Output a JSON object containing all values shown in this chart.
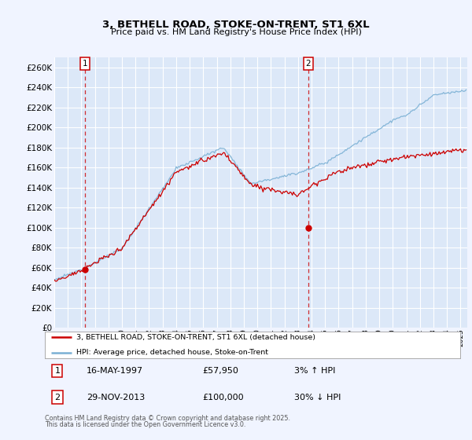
{
  "title": "3, BETHELL ROAD, STOKE-ON-TRENT, ST1 6XL",
  "subtitle": "Price paid vs. HM Land Registry's House Price Index (HPI)",
  "ylim": [
    0,
    270000
  ],
  "yticks": [
    0,
    20000,
    40000,
    60000,
    80000,
    100000,
    120000,
    140000,
    160000,
    180000,
    200000,
    220000,
    240000,
    260000
  ],
  "background_color": "#f0f4ff",
  "plot_bg_color": "#dce8f8",
  "grid_color": "#ffffff",
  "hpi_color": "#7ab0d4",
  "price_color": "#cc0000",
  "marker1_price": 57950,
  "marker2_price": 100000,
  "legend_entry1": "3, BETHELL ROAD, STOKE-ON-TRENT, ST1 6XL (detached house)",
  "legend_entry2": "HPI: Average price, detached house, Stoke-on-Trent",
  "footer": "Contains HM Land Registry data © Crown copyright and database right 2025.\nThis data is licensed under the Open Government Licence v3.0."
}
